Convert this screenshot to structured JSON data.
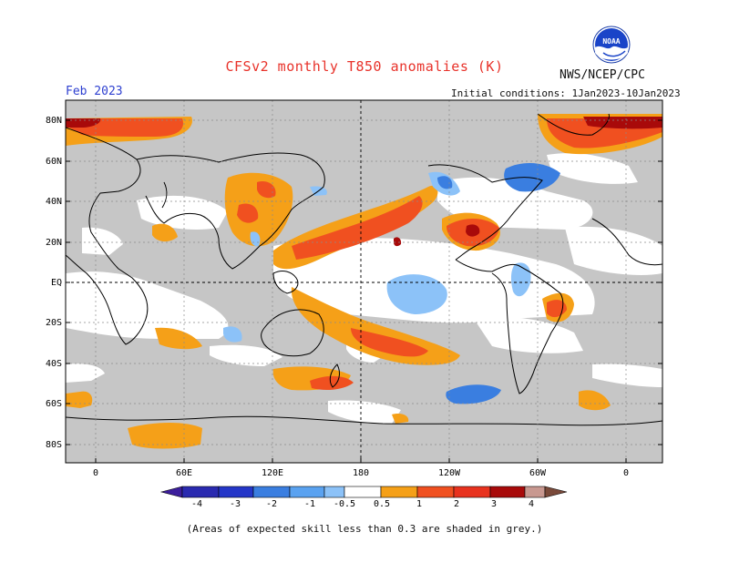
{
  "title": "CFSv2 monthly T850 anomalies (K)",
  "agency": "NWS/NCEP/CPC",
  "logo_text": "NOAA",
  "forecast_month": "Feb 2023",
  "initial_conditions": "Initial conditions: 1Jan2023-10Jan2023",
  "footnote": "(Areas of expected skill less than 0.3 are shaded in grey.)",
  "map": {
    "lat_labels": [
      "80N",
      "60N",
      "40N",
      "20N",
      "EQ",
      "20S",
      "40S",
      "60S",
      "80S"
    ],
    "lon_labels": [
      "0",
      "60E",
      "120E",
      "180",
      "120W",
      "60W",
      "0"
    ]
  },
  "colorbar": {
    "labels": [
      "-4",
      "-3",
      "-2",
      "-1",
      "-0.5",
      "0.5",
      "1",
      "2",
      "3",
      "4"
    ],
    "colors": [
      "#3c1e9c",
      "#2436c8",
      "#3a7ee0",
      "#5aa2f0",
      "#8cc2f8",
      "#ffffff",
      "#f5a018",
      "#f07020",
      "#e8321e",
      "#a80a0a",
      "#c89890",
      "#7a4a3a"
    ]
  },
  "colors": {
    "skill_grey": "#c6c6c6",
    "title_red": "#e8322a",
    "month_blue": "#2d3fd0"
  }
}
